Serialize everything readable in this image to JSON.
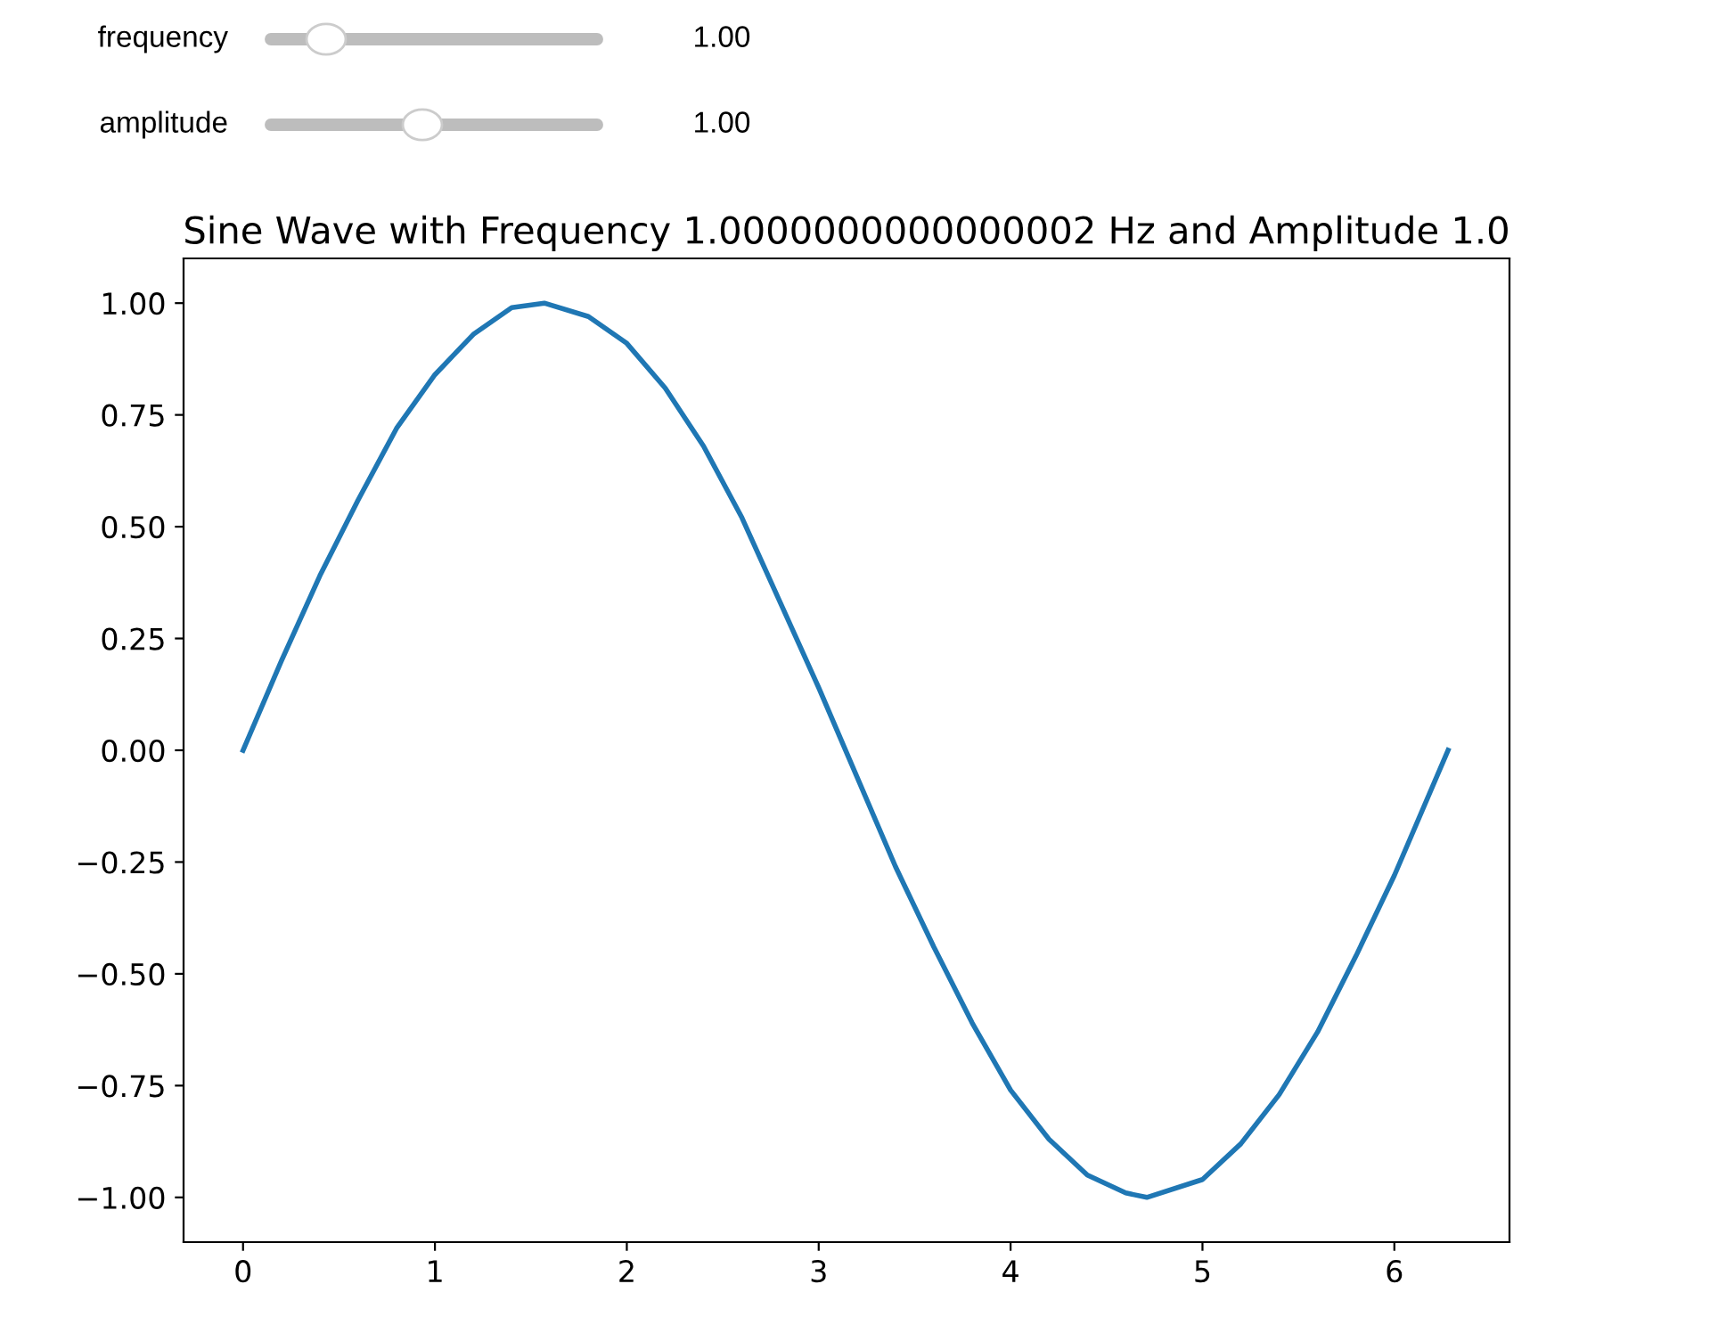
{
  "chart_data": {
    "type": "line",
    "title": "Sine Wave with Frequency 1.0000000000000002 Hz and Amplitude 1.0",
    "annotations": [
      "frequency",
      "1.00",
      "amplitude",
      "1.00"
    ],
    "series": [
      {
        "color": "#1f77b4",
        "x": [
          0,
          0.2,
          0.4,
          0.6,
          0.8,
          1.0,
          1.2,
          1.4,
          1.57,
          1.8,
          2.0,
          2.2,
          2.4,
          2.6,
          2.8,
          3.0,
          3.2,
          3.4,
          3.6,
          3.8,
          4.0,
          4.2,
          4.4,
          4.6,
          4.71,
          5.0,
          5.2,
          5.4,
          5.6,
          5.8,
          6.0,
          6.28
        ],
        "values": [
          0,
          0.2,
          0.39,
          0.56,
          0.72,
          0.84,
          0.93,
          0.99,
          1.0,
          0.97,
          0.91,
          0.81,
          0.68,
          0.52,
          0.33,
          0.14,
          -0.06,
          -0.26,
          -0.44,
          -0.61,
          -0.76,
          -0.87,
          -0.95,
          -0.99,
          -1.0,
          -0.96,
          -0.88,
          -0.77,
          -0.63,
          -0.46,
          -0.28,
          0.0
        ]
      }
    ],
    "xlim": [
      -0.31,
      6.6
    ],
    "ylim": [
      -1.1,
      1.1
    ],
    "xticks": [
      0,
      1,
      2,
      3,
      4,
      5,
      6
    ],
    "yticks": [
      {
        "value": -1,
        "label": "−1.00"
      },
      {
        "value": -0.75,
        "label": "−0.75"
      },
      {
        "value": -0.5,
        "label": "−0.50"
      },
      {
        "value": -0.25,
        "label": "−0.25"
      },
      {
        "value": 0,
        "label": "0.00"
      },
      {
        "value": 0.25,
        "label": "0.25"
      },
      {
        "value": 0.5,
        "label": "0.50"
      },
      {
        "value": 0.75,
        "label": "0.75"
      },
      {
        "value": 1,
        "label": "1.00"
      }
    ],
    "grid": false
  }
}
